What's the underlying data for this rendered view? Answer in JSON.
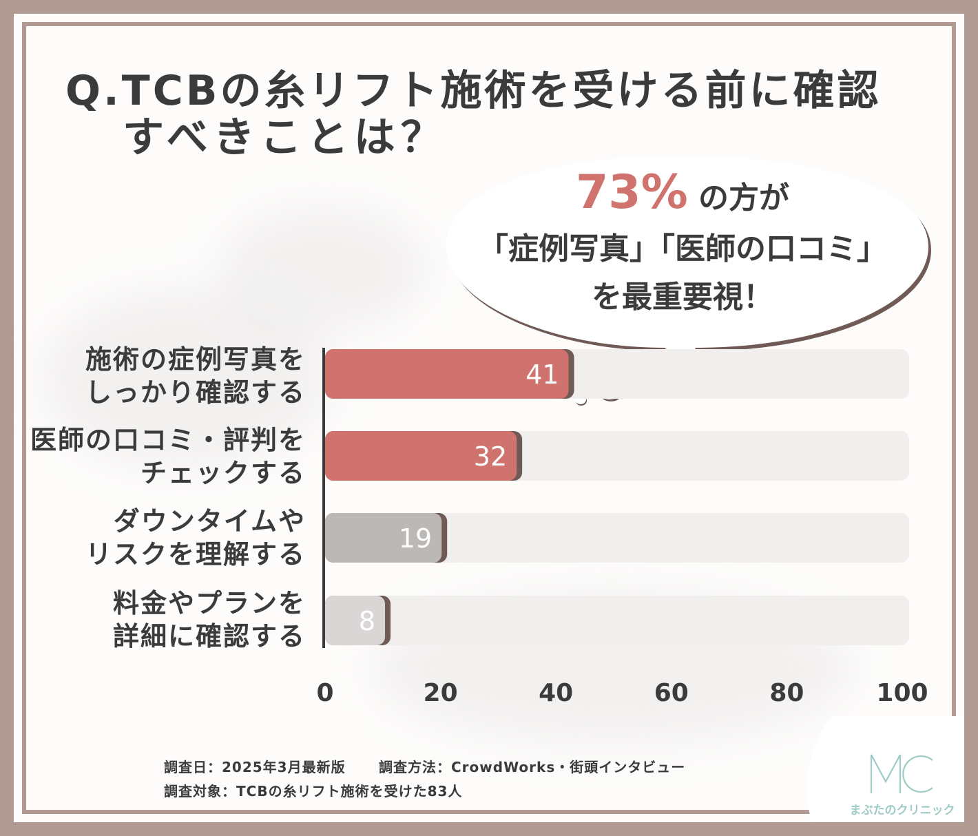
{
  "title": {
    "line1": "Q.TCBの糸リフト施術を受ける前に確認",
    "line2": "すべきことは？"
  },
  "callout": {
    "percent": "73%",
    "percent_suffix": "の方が",
    "line2": "「症例写真」「医師の口コミ」",
    "line3": "を最重要視！"
  },
  "chart_data": {
    "type": "bar",
    "orientation": "horizontal",
    "categories": [
      "施術の症例写真を\nしっかり確認する",
      "医師の口コミ・評判を\nチェックする",
      "ダウンタイムや\nリスクを理解する",
      "料金やプランを\n詳細に確認する"
    ],
    "values": [
      41,
      32,
      19,
      8
    ],
    "xlim": [
      0,
      100
    ],
    "xticks": [
      "0",
      "20",
      "40",
      "60",
      "80",
      "100"
    ],
    "bar_colors": [
      "#d0736f",
      "#d0736f",
      "#bcb8b6",
      "#d9d6d5"
    ],
    "track_color": "#f1efee",
    "grid": false
  },
  "footer": {
    "survey_date": "調査日：2025年3月最新版",
    "survey_method": "調査方法：CrowdWorks・街頭インタビュー",
    "survey_target": "調査対象：TCBの糸リフト施術を受けた83人"
  },
  "logo": {
    "mark": "MC",
    "name": "まぶたのクリニック",
    "color": "#9fcbc6"
  }
}
